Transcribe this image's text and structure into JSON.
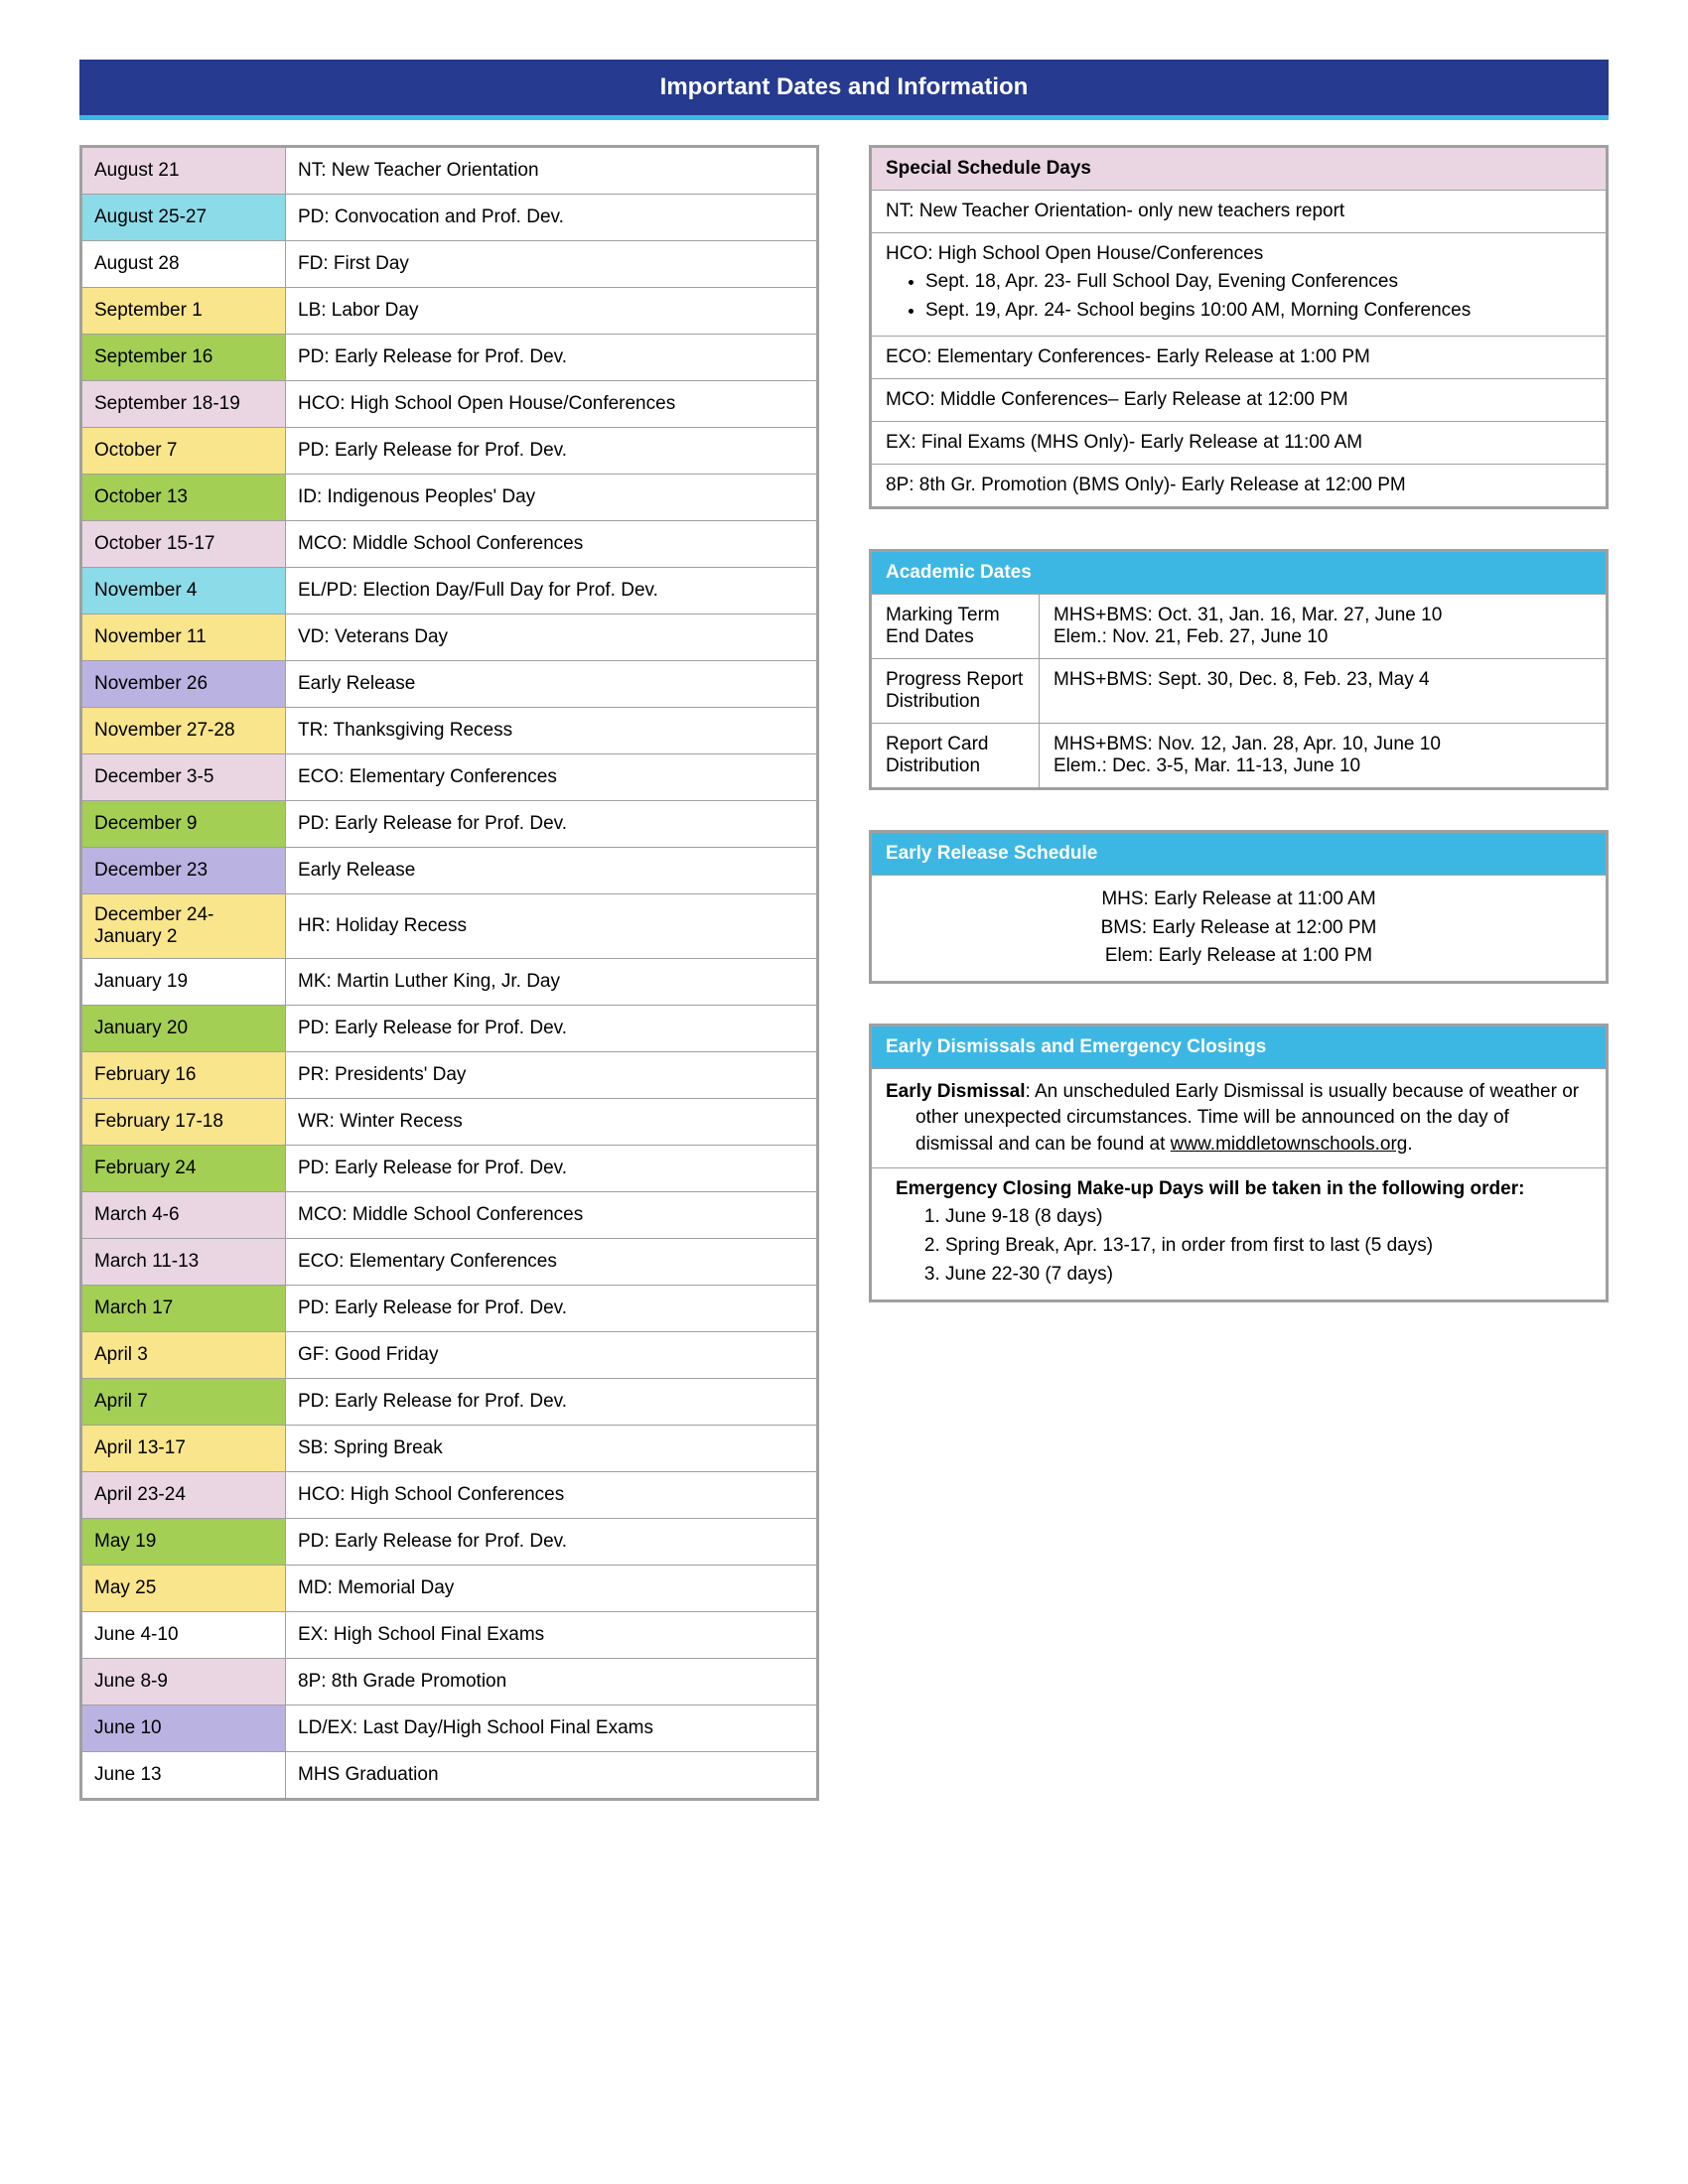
{
  "header_title": "Important Dates and Information",
  "colors": {
    "banner_bg": "#263a8f",
    "banner_text": "#ffffff",
    "banner_accent": "#3cb7e4",
    "border": "#a0a0a0",
    "pink": "#ead6e3",
    "blue": "#3cb7e4",
    "white": "#ffffff",
    "teal": "#8cdbe9",
    "yellow": "#f9e58b",
    "green": "#a4cf55",
    "purple": "#bab3e2"
  },
  "dates": [
    {
      "date": "August 21",
      "desc": "NT: New Teacher Orientation",
      "color": "#ead6e3"
    },
    {
      "date": "August 25-27",
      "desc": "PD: Convocation and Prof. Dev.",
      "color": "#8cdbe9"
    },
    {
      "date": "August 28",
      "desc": "FD: First Day",
      "color": "#ffffff"
    },
    {
      "date": "September 1",
      "desc": "LB: Labor Day",
      "color": "#f9e58b"
    },
    {
      "date": "September 16",
      "desc": "PD: Early Release for Prof. Dev.",
      "color": "#a4cf55"
    },
    {
      "date": "September 18-19",
      "desc": "HCO: High School Open House/Conferences",
      "color": "#ead6e3"
    },
    {
      "date": "October 7",
      "desc": "PD: Early Release for Prof. Dev.",
      "color": "#f9e58b"
    },
    {
      "date": "October 13",
      "desc": "ID: Indigenous Peoples' Day",
      "color": "#a4cf55"
    },
    {
      "date": "October 15-17",
      "desc": "MCO: Middle School Conferences",
      "color": "#ead6e3"
    },
    {
      "date": "November 4",
      "desc": "EL/PD: Election Day/Full Day for Prof. Dev.",
      "color": "#8cdbe9"
    },
    {
      "date": "November 11",
      "desc": "VD: Veterans Day",
      "color": "#f9e58b"
    },
    {
      "date": "November 26",
      "desc": "Early Release",
      "color": "#bab3e2"
    },
    {
      "date": "November 27-28",
      "desc": "TR: Thanksgiving Recess",
      "color": "#f9e58b"
    },
    {
      "date": "December 3-5",
      "desc": "ECO: Elementary Conferences",
      "color": "#ead6e3"
    },
    {
      "date": "December 9",
      "desc": "PD: Early Release for Prof. Dev.",
      "color": "#a4cf55"
    },
    {
      "date": "December 23",
      "desc": "Early Release",
      "color": "#bab3e2"
    },
    {
      "date": "December 24-January 2",
      "desc": "HR: Holiday Recess",
      "color": "#f9e58b"
    },
    {
      "date": "January 19",
      "desc": "MK: Martin Luther King, Jr. Day",
      "color": "#ffffff"
    },
    {
      "date": "January 20",
      "desc": "PD: Early Release for Prof. Dev.",
      "color": "#a4cf55"
    },
    {
      "date": "February 16",
      "desc": "PR: Presidents' Day",
      "color": "#f9e58b"
    },
    {
      "date": "February 17-18",
      "desc": "WR: Winter Recess",
      "color": "#f9e58b"
    },
    {
      "date": "February 24",
      "desc": "PD: Early Release for Prof. Dev.",
      "color": "#a4cf55"
    },
    {
      "date": "March 4-6",
      "desc": "MCO: Middle School Conferences",
      "color": "#ead6e3"
    },
    {
      "date": "March 11-13",
      "desc": "ECO: Elementary Conferences",
      "color": "#ead6e3"
    },
    {
      "date": "March 17",
      "desc": "PD: Early Release for Prof. Dev.",
      "color": "#a4cf55"
    },
    {
      "date": "April 3",
      "desc": "GF: Good Friday",
      "color": "#f9e58b"
    },
    {
      "date": "April 7",
      "desc": "PD: Early Release for Prof. Dev.",
      "color": "#a4cf55"
    },
    {
      "date": "April 13-17",
      "desc": "SB: Spring Break",
      "color": "#f9e58b"
    },
    {
      "date": "April 23-24",
      "desc": "HCO: High School Conferences",
      "color": "#ead6e3"
    },
    {
      "date": "May 19",
      "desc": "PD: Early Release for Prof. Dev.",
      "color": "#a4cf55"
    },
    {
      "date": "May 25",
      "desc": "MD: Memorial Day",
      "color": "#f9e58b"
    },
    {
      "date": "June 4-10",
      "desc": "EX: High School Final Exams",
      "color": "#ffffff"
    },
    {
      "date": "June 8-9",
      "desc": "8P: 8th Grade Promotion",
      "color": "#ead6e3"
    },
    {
      "date": "June 10",
      "desc": "LD/EX: Last Day/High School Final Exams",
      "color": "#bab3e2"
    },
    {
      "date": "June 13",
      "desc": "MHS Graduation",
      "color": "#ffffff"
    }
  ],
  "special_schedule": {
    "title": "Special Schedule Days",
    "row1": "NT: New Teacher Orientation- only new teachers report",
    "row2_intro": "HCO: High School Open House/Conferences",
    "row2_b1": "Sept. 18, Apr. 23- Full School Day, Evening Conferences",
    "row2_b2": "Sept. 19, Apr. 24- School begins 10:00 AM, Morning Conferences",
    "row3": "ECO: Elementary Conferences- Early Release at 1:00 PM",
    "row4": "MCO: Middle Conferences– Early Release at 12:00 PM",
    "row5": "EX: Final Exams (MHS Only)- Early Release at 11:00 AM",
    "row6": "8P: 8th Gr. Promotion (BMS Only)- Early Release at 12:00 PM"
  },
  "academic_dates": {
    "title": "Academic Dates",
    "rows": [
      {
        "label": "Marking Term End Dates",
        "line1": "MHS+BMS: Oct. 31, Jan. 16, Mar. 27, June 10",
        "line2": "Elem.: Nov. 21, Feb. 27, June 10"
      },
      {
        "label": "Progress Report Distribution",
        "line1": "MHS+BMS: Sept. 30, Dec. 8, Feb. 23, May 4",
        "line2": ""
      },
      {
        "label": "Report Card Distribution",
        "line1": "MHS+BMS: Nov. 12, Jan. 28, Apr. 10, June 10",
        "line2": "Elem.: Dec. 3-5, Mar. 11-13, June 10"
      }
    ]
  },
  "early_release": {
    "title": "Early Release Schedule",
    "line1": "MHS: Early Release at 11:00 AM",
    "line2": "BMS: Early Release at 12:00 PM",
    "line3": "Elem: Early Release at 1:00 PM"
  },
  "emergency": {
    "title": "Early Dismissals and Emergency Closings",
    "early_label": "Early Dismissal",
    "early_text": ": An unscheduled Early Dismissal is usually because of weather or other unexpected circumstances. Time will be announced on the day of dismissal and can be found at ",
    "early_link": "www.middletownschools.org",
    "makeup_intro": "Emergency Closing Make-up Days will be taken in the following order:",
    "makeup_1": "June 9-18 (8 days)",
    "makeup_2": "Spring Break, Apr. 13-17, in order from first to last (5 days)",
    "makeup_3": "June 22-30 (7 days)"
  }
}
